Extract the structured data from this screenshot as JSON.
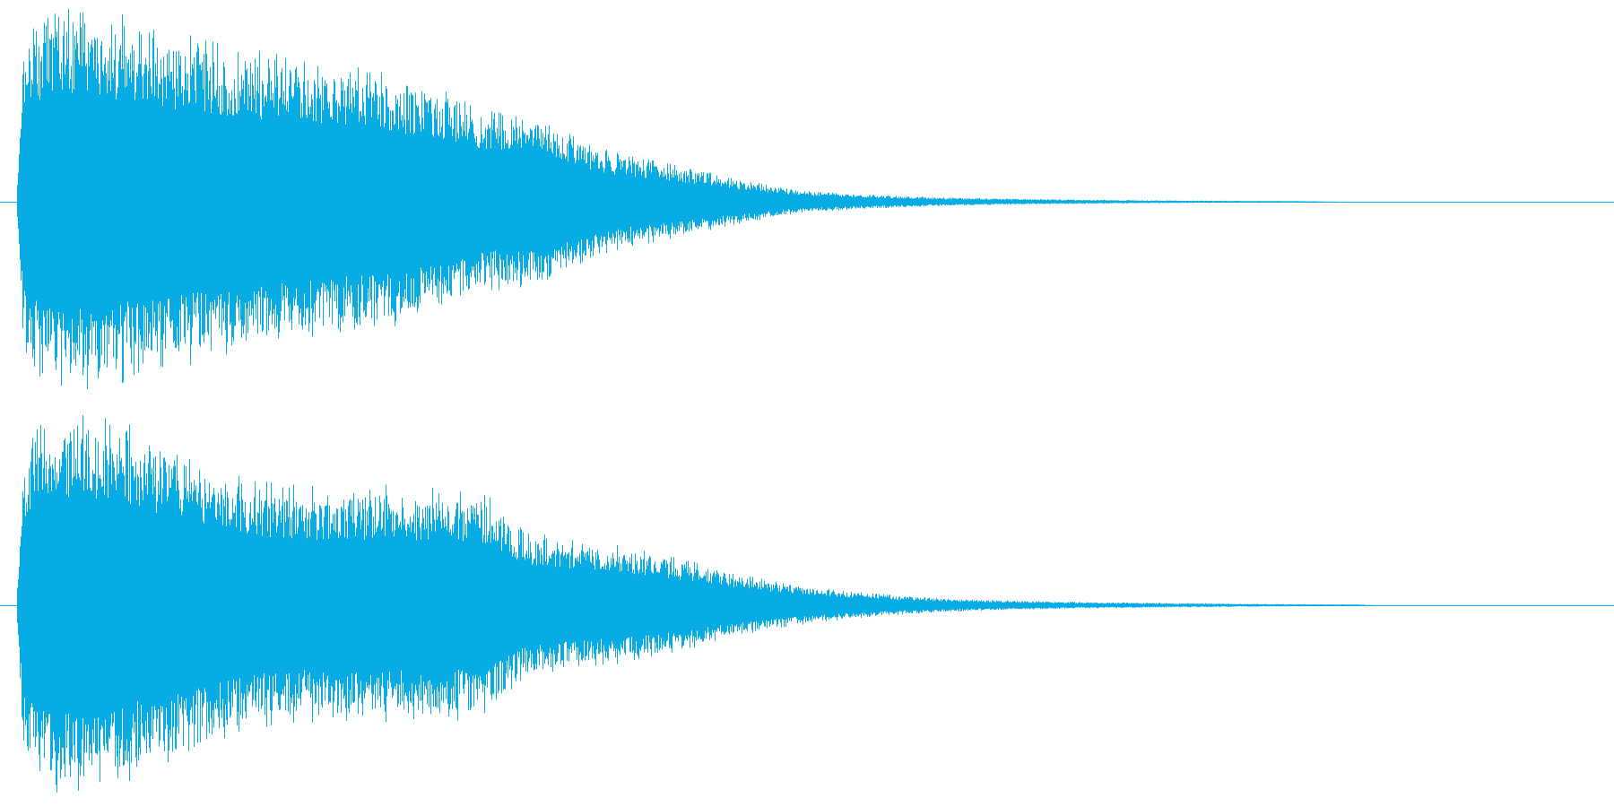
{
  "waveform": {
    "color": "#06ace3",
    "channel_count": 2,
    "channels": [
      {
        "name": "",
        "envelope": [
          [
            0.0,
            0.0
          ],
          [
            0.004,
            0.72
          ],
          [
            0.01,
            0.86
          ],
          [
            0.02,
            0.94
          ],
          [
            0.04,
            0.96
          ],
          [
            0.06,
            0.93
          ],
          [
            0.08,
            0.87
          ],
          [
            0.1,
            0.83
          ],
          [
            0.13,
            0.78
          ],
          [
            0.16,
            0.73
          ],
          [
            0.19,
            0.69
          ],
          [
            0.22,
            0.66
          ],
          [
            0.25,
            0.6
          ],
          [
            0.27,
            0.56
          ],
          [
            0.29,
            0.45
          ],
          [
            0.31,
            0.43
          ],
          [
            0.33,
            0.44
          ],
          [
            0.345,
            0.36
          ],
          [
            0.36,
            0.28
          ],
          [
            0.38,
            0.23
          ],
          [
            0.4,
            0.2
          ],
          [
            0.42,
            0.17
          ],
          [
            0.44,
            0.13
          ],
          [
            0.46,
            0.1
          ],
          [
            0.48,
            0.07
          ],
          [
            0.5,
            0.05
          ],
          [
            0.53,
            0.036
          ],
          [
            0.56,
            0.026
          ],
          [
            0.6,
            0.018
          ],
          [
            0.65,
            0.012
          ],
          [
            0.7,
            0.008
          ],
          [
            0.76,
            0.005
          ],
          [
            0.81,
            0.003
          ],
          [
            0.83,
            0.0
          ],
          [
            1.0,
            0.0
          ]
        ]
      },
      {
        "name": "",
        "envelope": [
          [
            0.0,
            0.0
          ],
          [
            0.004,
            0.74
          ],
          [
            0.01,
            0.88
          ],
          [
            0.02,
            0.95
          ],
          [
            0.04,
            0.96
          ],
          [
            0.06,
            0.92
          ],
          [
            0.08,
            0.85
          ],
          [
            0.1,
            0.8
          ],
          [
            0.12,
            0.72
          ],
          [
            0.14,
            0.63
          ],
          [
            0.16,
            0.6
          ],
          [
            0.18,
            0.58
          ],
          [
            0.2,
            0.6
          ],
          [
            0.22,
            0.59
          ],
          [
            0.25,
            0.58
          ],
          [
            0.28,
            0.58
          ],
          [
            0.3,
            0.52
          ],
          [
            0.315,
            0.38
          ],
          [
            0.34,
            0.33
          ],
          [
            0.37,
            0.3
          ],
          [
            0.4,
            0.26
          ],
          [
            0.43,
            0.2
          ],
          [
            0.46,
            0.14
          ],
          [
            0.49,
            0.1
          ],
          [
            0.52,
            0.07
          ],
          [
            0.55,
            0.05
          ],
          [
            0.58,
            0.034
          ],
          [
            0.62,
            0.024
          ],
          [
            0.67,
            0.016
          ],
          [
            0.72,
            0.011
          ],
          [
            0.78,
            0.007
          ],
          [
            0.84,
            0.004
          ],
          [
            0.85,
            0.0
          ],
          [
            1.0,
            0.0
          ]
        ]
      }
    ]
  }
}
